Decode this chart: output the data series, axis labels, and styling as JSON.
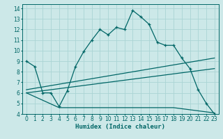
{
  "xlabel": "Humidex (Indice chaleur)",
  "bg_color": "#cce8e8",
  "line_color": "#006666",
  "grid_color": "#aad4d4",
  "xlim": [
    -0.5,
    23.5
  ],
  "ylim": [
    4,
    14.4
  ],
  "yticks": [
    4,
    5,
    6,
    7,
    8,
    9,
    10,
    11,
    12,
    13,
    14
  ],
  "xticks": [
    0,
    1,
    2,
    3,
    4,
    5,
    6,
    7,
    8,
    9,
    10,
    11,
    12,
    13,
    14,
    15,
    16,
    17,
    18,
    19,
    20,
    21,
    22,
    23
  ],
  "series1_x": [
    0,
    1,
    2,
    3,
    4,
    5,
    6,
    7,
    8,
    9,
    10,
    11,
    12,
    13,
    14,
    15,
    16,
    17,
    18,
    19,
    20,
    21,
    22,
    23
  ],
  "series1_y": [
    9.0,
    8.5,
    6.0,
    6.0,
    4.7,
    6.2,
    8.5,
    9.9,
    11.0,
    12.0,
    11.5,
    12.2,
    12.0,
    13.8,
    13.2,
    12.5,
    10.8,
    10.5,
    10.5,
    9.3,
    8.3,
    6.3,
    5.0,
    4.0
  ],
  "series2_x": [
    0,
    23
  ],
  "series2_y": [
    6.3,
    9.3
  ],
  "series3_x": [
    0,
    23
  ],
  "series3_y": [
    6.0,
    8.3
  ],
  "series4_x": [
    0,
    4,
    18,
    23
  ],
  "series4_y": [
    6.0,
    4.6,
    4.6,
    4.1
  ]
}
